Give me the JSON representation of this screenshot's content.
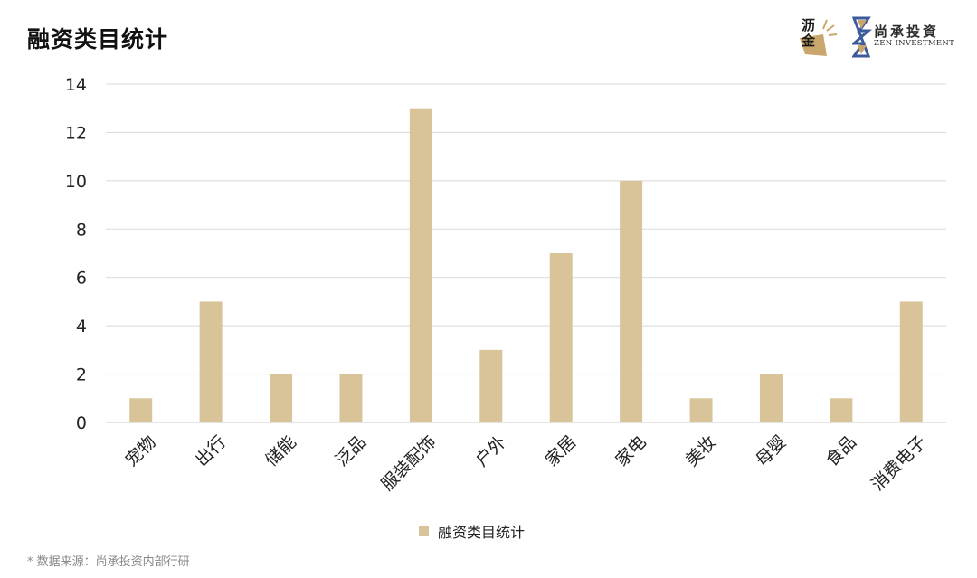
{
  "header": {
    "title": "融资类目统计",
    "logo_li_text": "沥金",
    "logo_zen_cn": "尚承投資",
    "logo_zen_en": "ZEN INVESTMENT"
  },
  "footer": {
    "source": "* 数据来源：尚承投资内部行研"
  },
  "colors": {
    "bar": "#d9c49a",
    "grid": "#d8d8d8",
    "axis": "#c8c8c8"
  },
  "chart_data": {
    "type": "bar",
    "title": "融资类目统计",
    "categories": [
      "宠物",
      "出行",
      "储能",
      "泛品",
      "服装配饰",
      "户外",
      "家居",
      "家电",
      "美妆",
      "母婴",
      "食品",
      "消费电子"
    ],
    "series": [
      {
        "name": "融资类目统计",
        "values": [
          1,
          5,
          2,
          2,
          13,
          3,
          7,
          10,
          1,
          2,
          1,
          5
        ]
      }
    ],
    "yticks": [
      0,
      2,
      4,
      6,
      8,
      10,
      12,
      14
    ],
    "ylim": [
      0,
      14
    ],
    "grid": true,
    "legend": "bottom-center",
    "xlabel": "",
    "ylabel": ""
  }
}
